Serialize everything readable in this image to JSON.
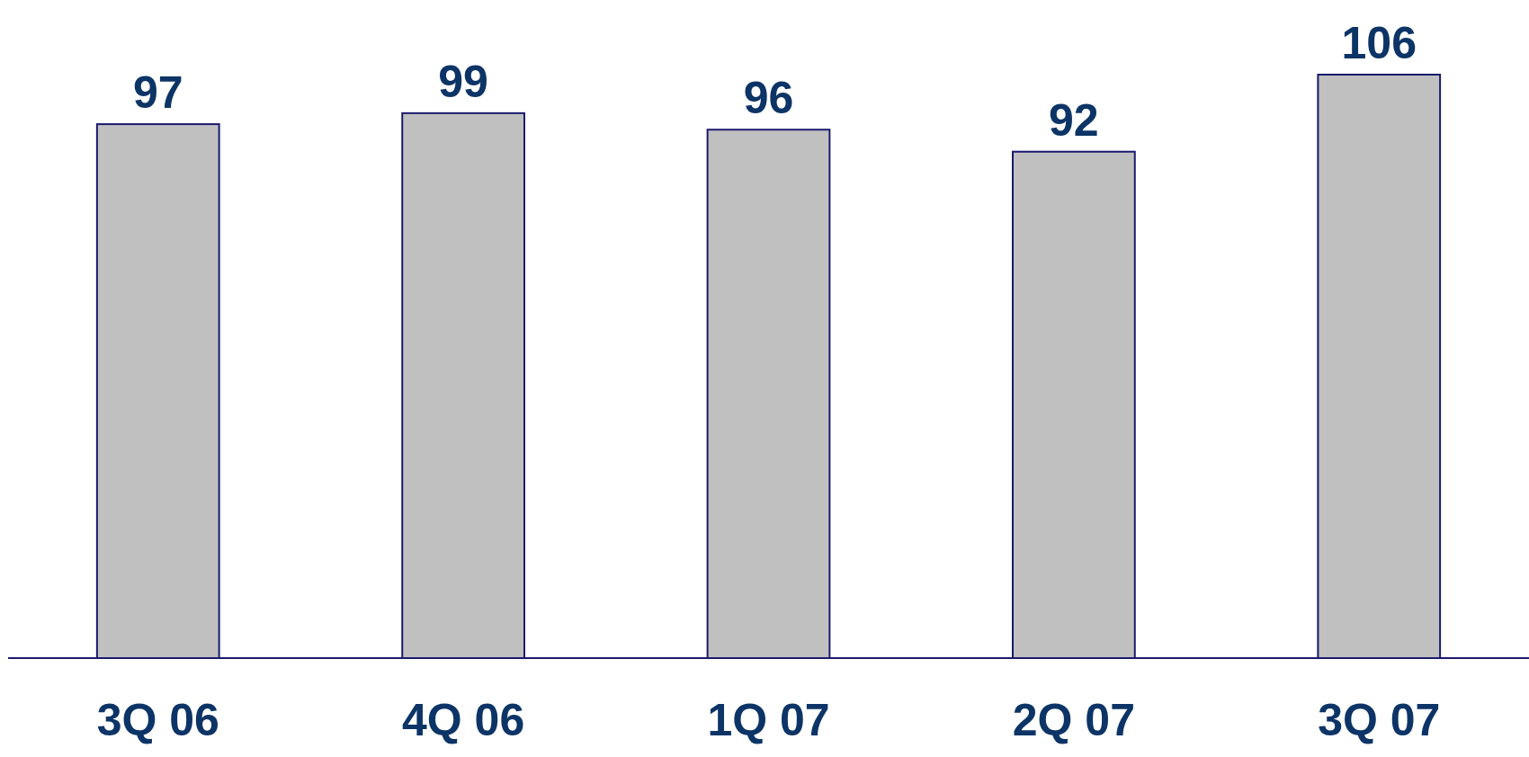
{
  "chart_data": {
    "type": "bar",
    "categories": [
      "3Q 06",
      "4Q 06",
      "1Q 07",
      "2Q 07",
      "3Q 07"
    ],
    "values": [
      97,
      99,
      96,
      92,
      106
    ],
    "color": "#c0c0c0",
    "data_labels": true
  }
}
